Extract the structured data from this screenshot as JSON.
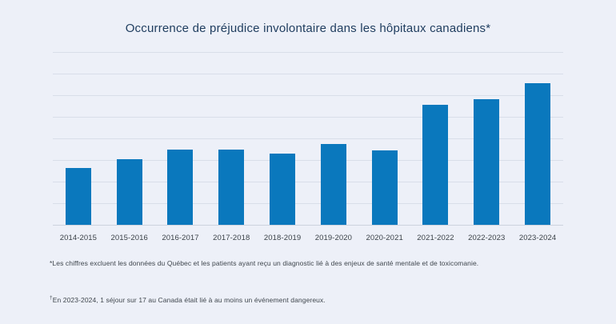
{
  "page": {
    "background_color": "#edf0f8"
  },
  "chart_data": {
    "type": "bar",
    "title": "Occurrence de préjudice involontaire dans les hôpitaux canadiens*",
    "categories": [
      "2014-2015",
      "2015-2016",
      "2016-2017",
      "2017-2018",
      "2018-2019",
      "2019-2020",
      "2020-2021",
      "2021-2022",
      "2022-2023",
      "2023-2024"
    ],
    "values": [
      2.63,
      3.03,
      3.47,
      3.48,
      3.28,
      3.75,
      3.46,
      5.56,
      5.8,
      6.54
    ],
    "xlabel": "",
    "ylabel": "",
    "ylim": [
      0,
      8
    ],
    "gridline_step": 1,
    "grid": "horizontal-only, no y-axis tick labels",
    "legend": "none",
    "colors": {
      "bar": "#0a78bd",
      "gridline": "#d9dee9",
      "baseline": "#ccd2dd",
      "title": "#1e3c5e",
      "axis_label": "#3a4148",
      "footnote": "#3f464d"
    }
  },
  "footnotes": [
    {
      "marker": "*",
      "text": "Les chiffres excluent les données du Québec et les patients ayant reçu un diagnostic lié à des enjeux de santé mentale et de toxicomanie."
    },
    {
      "marker": "†",
      "text": "En 2023-2024, 1 séjour sur 17 au Canada était lié à au moins un événement dangereux."
    }
  ]
}
